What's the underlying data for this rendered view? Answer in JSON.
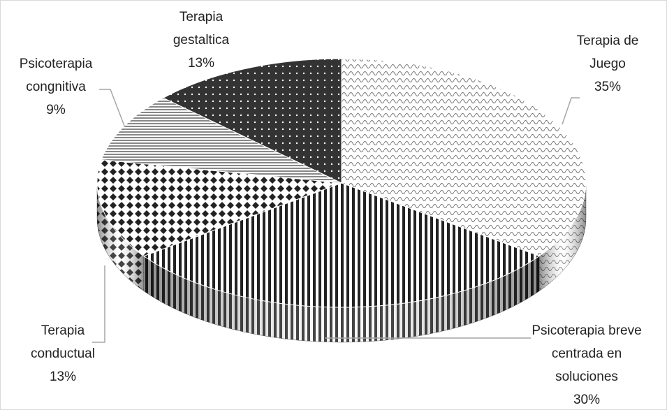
{
  "chart_data": {
    "type": "pie",
    "categories": [
      "Terapia de Juego",
      "Psicoterapia breve centrada en soluciones",
      "Terapia conductual",
      "Psicoterapia congnitiva",
      "Terapia gestaltica"
    ],
    "values": [
      35,
      30,
      13,
      9,
      13
    ],
    "value_labels": [
      "35%",
      "30%",
      "13%",
      "9%",
      "13%"
    ]
  }
}
